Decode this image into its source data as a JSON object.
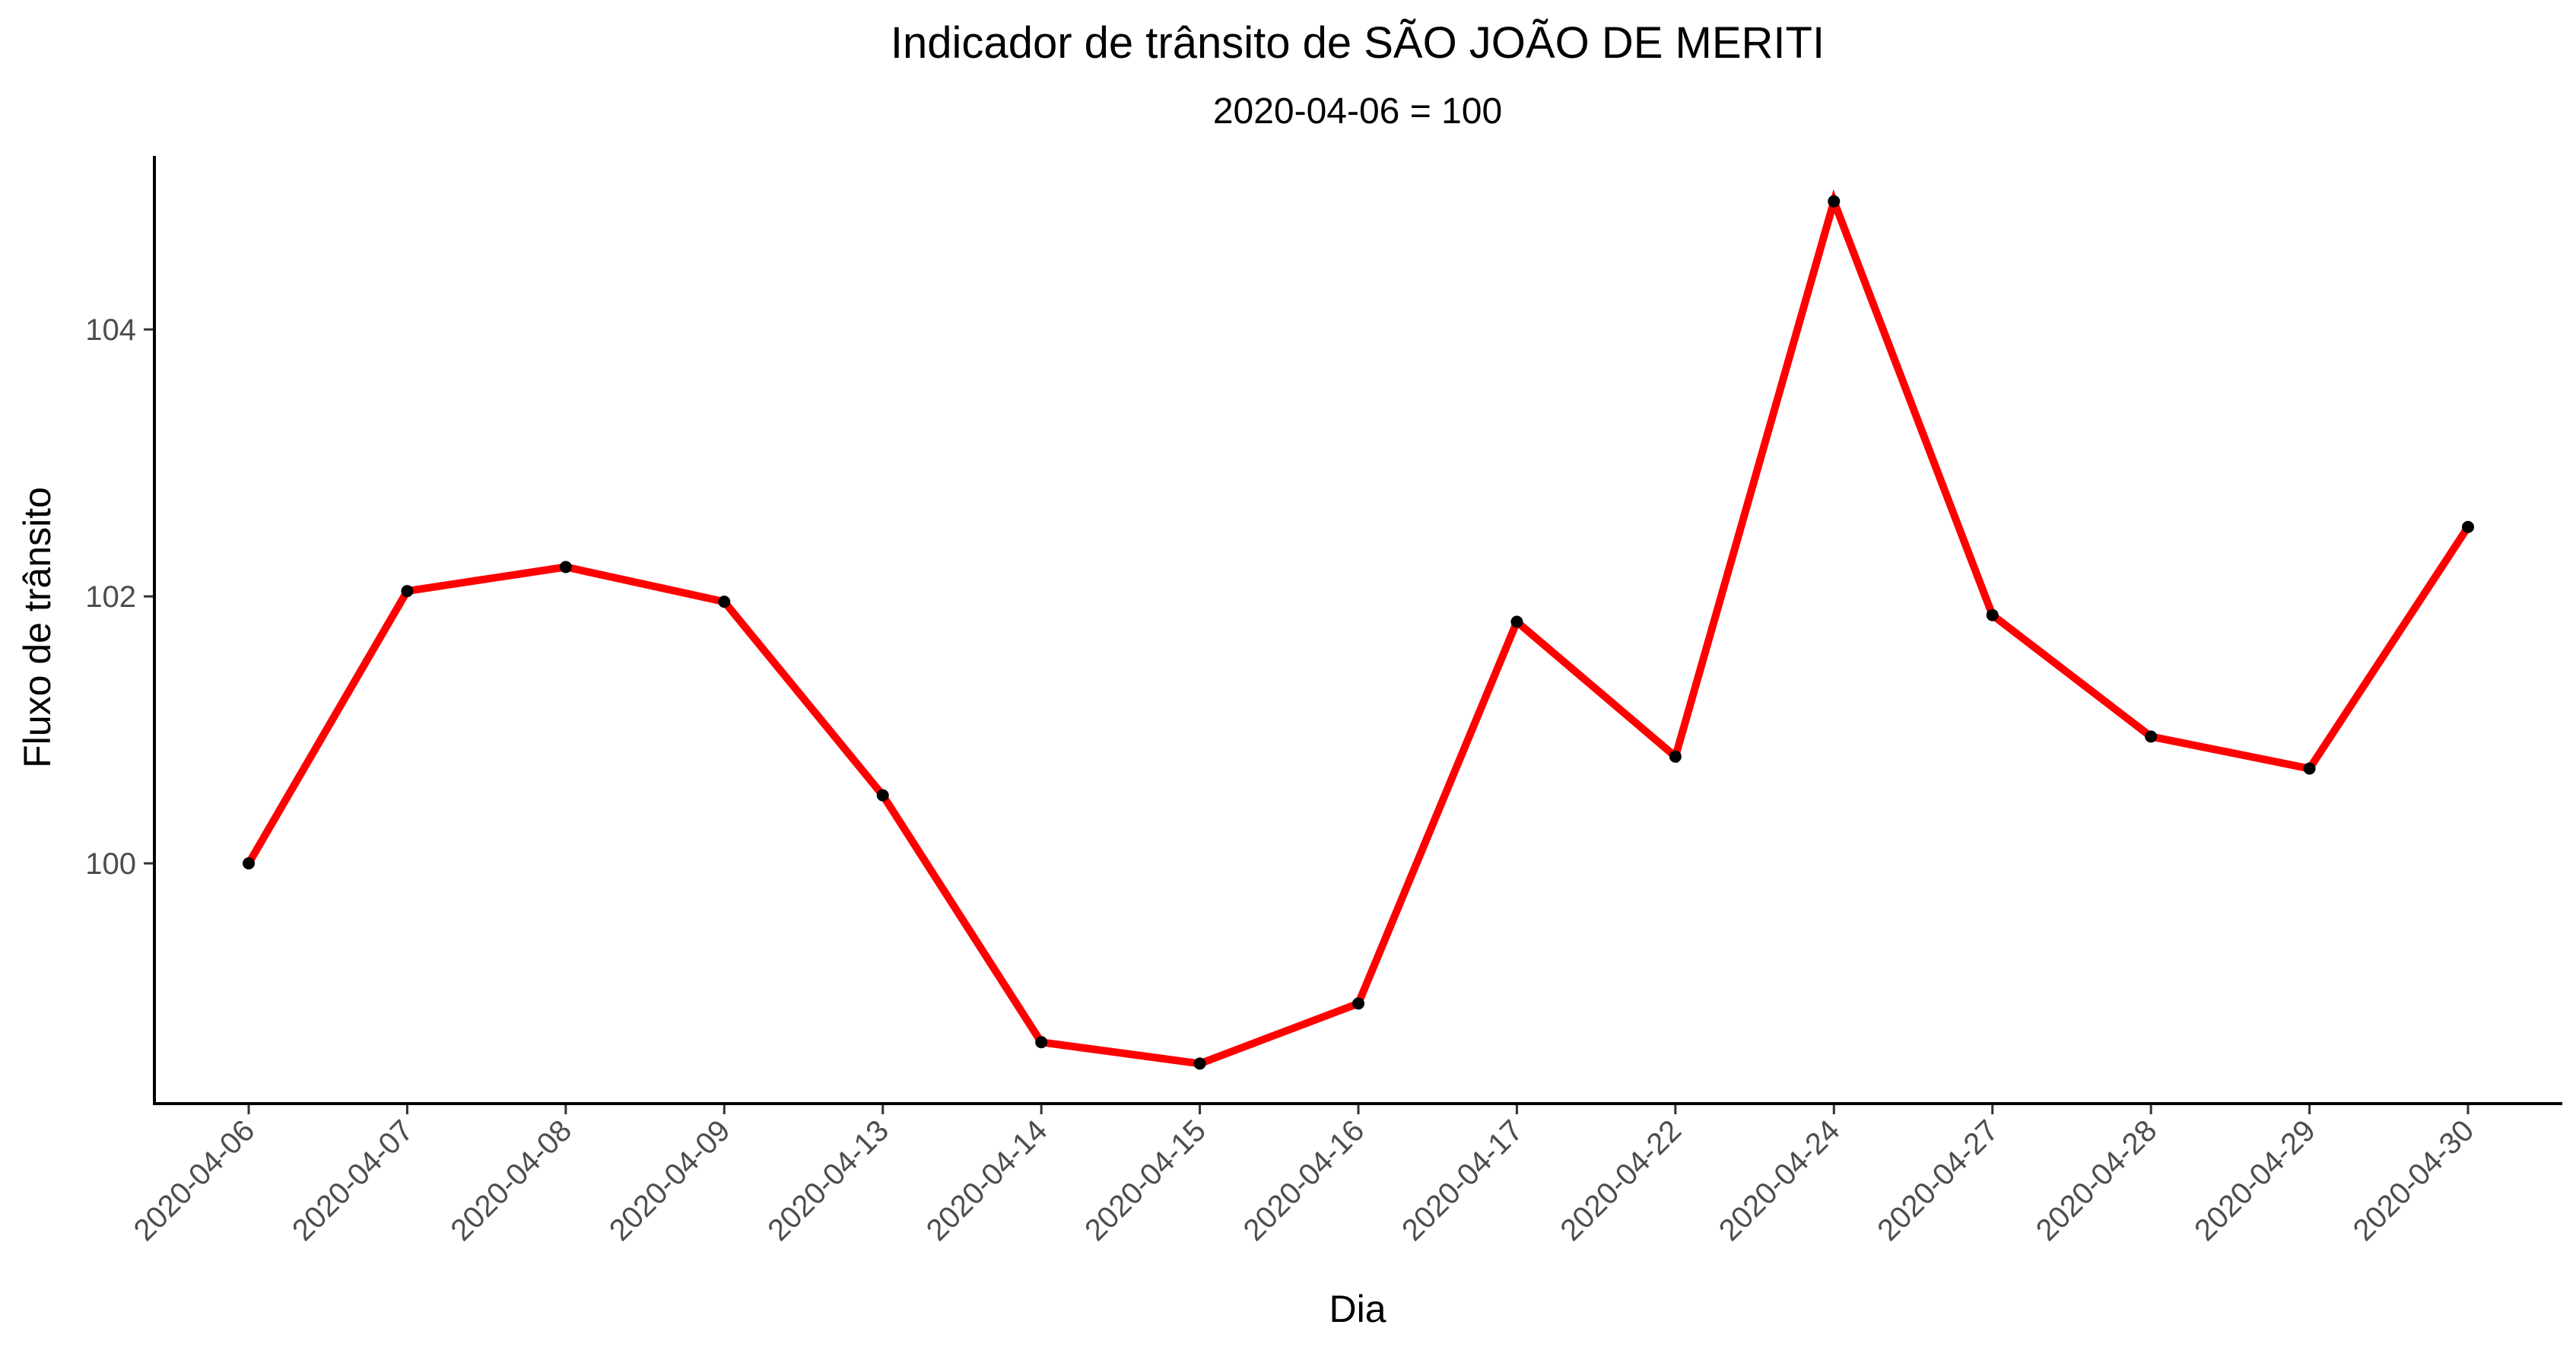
{
  "chart_data": {
    "type": "line",
    "title": "Indicador de trânsito de SÃO JOÃO DE MERITI",
    "subtitle": "2020-04-06 = 100",
    "xlabel": "Dia",
    "ylabel": "Fluxo de trânsito",
    "categories": [
      "2020-04-06",
      "2020-04-07",
      "2020-04-08",
      "2020-04-09",
      "2020-04-13",
      "2020-04-14",
      "2020-04-15",
      "2020-04-16",
      "2020-04-17",
      "2020-04-22",
      "2020-04-24",
      "2020-04-27",
      "2020-04-28",
      "2020-04-29",
      "2020-04-30"
    ],
    "series": [
      {
        "color": "#ff0000",
        "point_color": "#000000",
        "values": [
          100.0,
          102.04,
          102.22,
          101.96,
          100.51,
          98.66,
          98.5,
          98.95,
          101.81,
          100.8,
          104.96,
          101.86,
          100.95,
          100.71,
          102.52
        ]
      }
    ],
    "yticks": [
      100,
      102,
      104
    ],
    "ylim": [
      98.2,
      105.3
    ],
    "grid": false,
    "legend": "none"
  }
}
